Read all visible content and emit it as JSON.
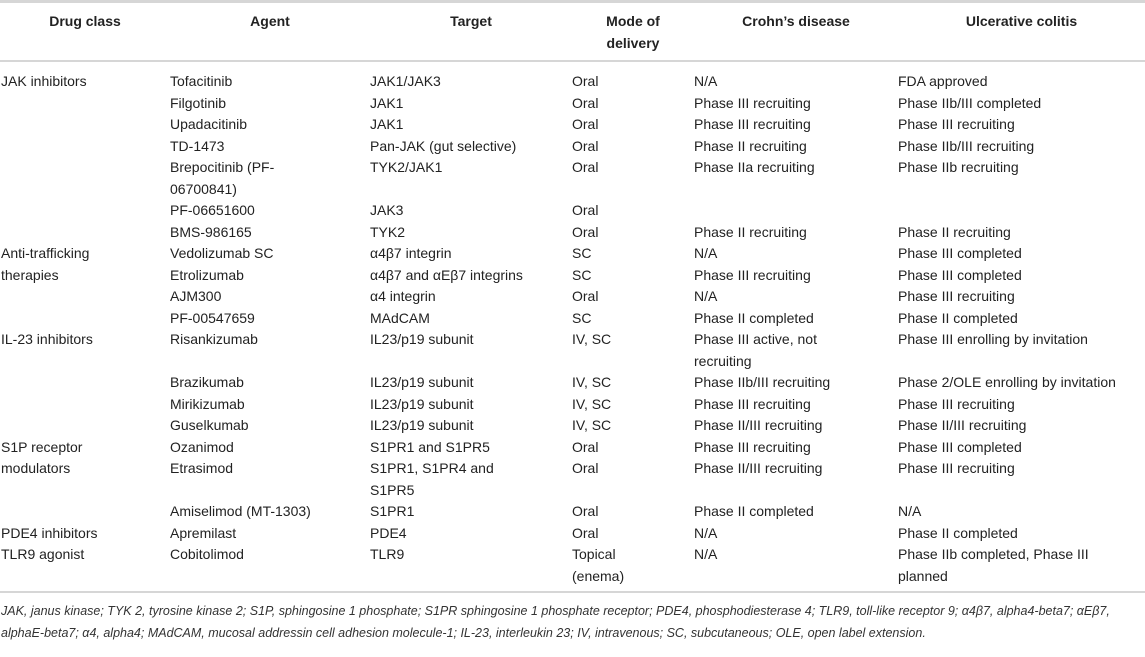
{
  "headers": [
    "Drug class",
    "Agent",
    "Target",
    "Mode of\ndelivery",
    "Crohn’s disease",
    "Ulcerative colitis"
  ],
  "groups": [
    {
      "drug_class": "JAK inhibitors",
      "rows": [
        [
          "Tofacitinib",
          "JAK1/JAK3",
          "Oral",
          "N/A",
          "FDA approved"
        ],
        [
          "Filgotinib",
          "JAK1",
          "Oral",
          "Phase III recruiting",
          "Phase IIb/III completed"
        ],
        [
          "Upadacitinib",
          "JAK1",
          "Oral",
          "Phase III recruiting",
          "Phase III recruiting"
        ],
        [
          "TD-1473",
          "Pan-JAK (gut selective)",
          "Oral",
          "Phase II recruiting",
          "Phase IIb/III recruiting"
        ],
        [
          "Brepocitinib (PF-\n06700841)",
          "TYK2/JAK1",
          "Oral",
          "Phase IIa recruiting",
          "Phase IIb recruiting"
        ],
        [
          "PF-06651600",
          "JAK3",
          "Oral",
          "",
          ""
        ],
        [
          "BMS-986165",
          "TYK2",
          "Oral",
          "Phase II recruiting",
          "Phase II recruiting"
        ]
      ]
    },
    {
      "drug_class": "Anti-trafficking\ntherapies",
      "rows": [
        [
          "Vedolizumab SC",
          "α4β7 integrin",
          "SC",
          "N/A",
          "Phase III completed"
        ],
        [
          "Etrolizumab",
          "α4β7 and αEβ7 integrins",
          "SC",
          "Phase III recruiting",
          "Phase III completed"
        ],
        [
          "AJM300",
          "α4 integrin",
          "Oral",
          "N/A",
          "Phase III recruiting"
        ],
        [
          "PF-00547659",
          "MAdCAM",
          "SC",
          "Phase II completed",
          "Phase II completed"
        ]
      ]
    },
    {
      "drug_class": "IL-23 inhibitors",
      "rows": [
        [
          "Risankizumab",
          "IL23/p19 subunit",
          "IV, SC",
          "Phase III active, not\nrecruiting",
          "Phase III enrolling by invitation"
        ],
        [
          "Brazikumab",
          "IL23/p19 subunit",
          "IV, SC",
          "Phase IIb/III recruiting",
          "Phase 2/OLE enrolling by invitation"
        ],
        [
          "Mirikizumab",
          "IL23/p19 subunit",
          "IV, SC",
          "Phase III recruiting",
          "Phase III recruiting"
        ],
        [
          "Guselkumab",
          "IL23/p19 subunit",
          "IV, SC",
          "Phase II/III recruiting",
          "Phase II/III recruiting"
        ]
      ]
    },
    {
      "drug_class": "S1P receptor\nmodulators",
      "rows": [
        [
          "Ozanimod",
          "S1PR1 and S1PR5",
          "Oral",
          "Phase III recruiting",
          "Phase III completed"
        ],
        [
          "Etrasimod",
          "S1PR1, S1PR4 and\nS1PR5",
          "Oral",
          "Phase II/III recruiting",
          "Phase III recruiting"
        ],
        [
          "Amiselimod (MT-1303)",
          "S1PR1",
          "Oral",
          "Phase II completed",
          "N/A"
        ]
      ]
    },
    {
      "drug_class": "PDE4 inhibitors",
      "rows": [
        [
          "Apremilast",
          "PDE4",
          "Oral",
          "N/A",
          "Phase II completed"
        ]
      ]
    },
    {
      "drug_class": "TLR9 agonist",
      "rows": [
        [
          "Cobitolimod",
          "TLR9",
          "Topical\n(enema)",
          "N/A",
          "Phase IIb completed, Phase III\nplanned"
        ]
      ]
    }
  ],
  "footnote": "JAK, janus kinase; TYK 2, tyrosine kinase 2; S1P, sphingosine 1 phosphate; S1PR sphingosine 1 phosphate receptor; PDE4, phosphodiesterase 4; TLR9, toll-like receptor 9; α4β7, alpha4-beta7; αEβ7, alphaE-beta7; α4, alpha4; MAdCAM, mucosal addressin cell adhesion molecule-1; IL-23, interleukin 23; IV, intravenous; SC, subcutaneous; OLE, open label extension."
}
